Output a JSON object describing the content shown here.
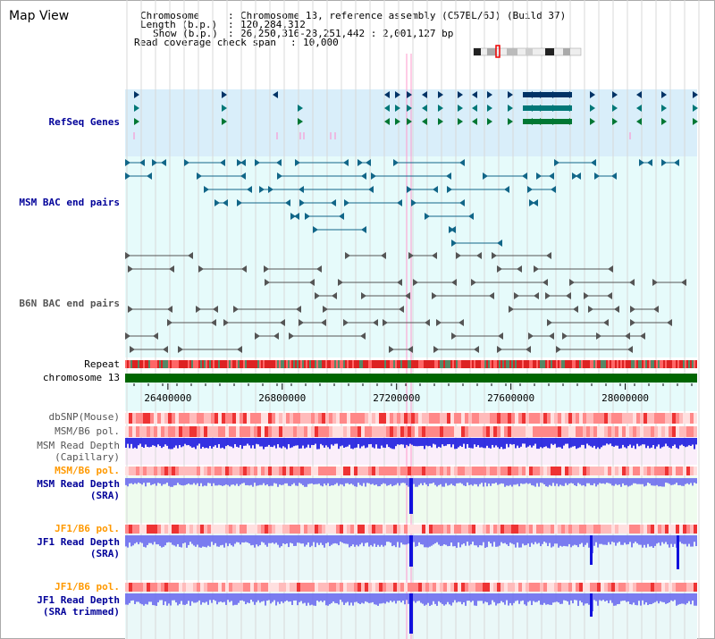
{
  "view": {
    "title": "Map View"
  },
  "info": {
    "chromosome_label": "Chromosome",
    "chromosome_value": "Chromosome 13, reference assembly (C57BL/6J) (Build 37)",
    "length_label": "Length (b.p.)",
    "length_value": "120,284,312",
    "show_label": "Show (b.p.)",
    "show_value": "26,250,316-28,251,442 : 2,001,127 bp",
    "coverage_label": "Read coverage check span",
    "coverage_value": "10,000"
  },
  "axis": {
    "ticks": [
      "26400000",
      "26800000",
      "27200000",
      "27600000",
      "28000000"
    ],
    "tick_values": [
      26400000,
      26800000,
      27200000,
      27600000,
      28000000
    ],
    "range": [
      26250316,
      28251442
    ]
  },
  "tracks": [
    {
      "id": "refseq",
      "label": "RefSeq Genes",
      "color": "#000099"
    },
    {
      "id": "msm-bac",
      "label": "MSM BAC end pairs",
      "color": "#000099"
    },
    {
      "id": "b6n-bac",
      "label": "B6N BAC end pairs",
      "color": "#555555"
    },
    {
      "id": "repeat",
      "label": "Repeat",
      "color": "#000000"
    },
    {
      "id": "chrom",
      "label": "chromosome 13",
      "color": "#000000"
    },
    {
      "id": "dbsnp",
      "label": "dbSNP(Mouse)",
      "color": "#555555"
    },
    {
      "id": "msm-pol-1",
      "label": "MSM/B6 pol.",
      "color": "#555555"
    },
    {
      "id": "msm-depth-cap",
      "label": "MSM Read Depth\n(Capillary)",
      "color": "#555555"
    },
    {
      "id": "msm-pol-2",
      "label": "MSM/B6 pol.",
      "color": "#ff9900"
    },
    {
      "id": "msm-depth-sra",
      "label": "MSM Read Depth\n(SRA)",
      "color": "#000099"
    },
    {
      "id": "jf1-pol-1",
      "label": "JF1/B6 pol.",
      "color": "#ff9900"
    },
    {
      "id": "jf1-depth-sra",
      "label": "JF1 Read Depth\n(SRA)",
      "color": "#000099"
    },
    {
      "id": "jf1-pol-2",
      "label": "JF1/B6 pol.",
      "color": "#ff9900"
    },
    {
      "id": "jf1-depth-trim",
      "label": "JF1 Read Depth\n(SRA trimmed)",
      "color": "#000099"
    }
  ],
  "colors": {
    "refseq_bg": "#d9eefa",
    "track_bg": "#e6fbfb",
    "gene_dark": "#003366",
    "gene_teal": "#007777",
    "gene_green": "#007733",
    "msm_pair": "#116688",
    "b6n_pair": "#555555",
    "repeat_red": "#dd2222",
    "chrom_green": "#006600",
    "depth_capillary": "#1111dd",
    "depth_sra": "#6666ee",
    "grid_line": "#d8d8d8",
    "highlight_line": "#ff99cc"
  }
}
